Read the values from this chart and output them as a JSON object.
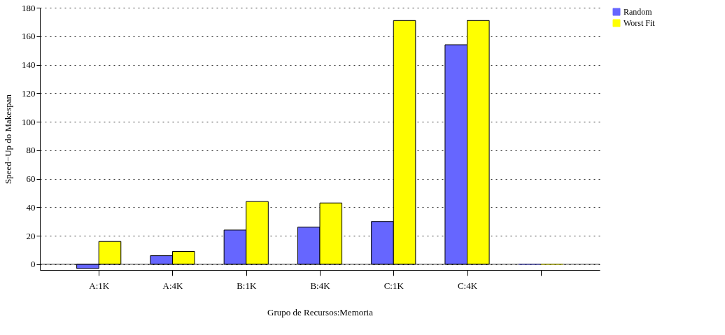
{
  "chart_data": {
    "type": "bar",
    "xlabel": "Grupo de Recursos:Memoria",
    "ylabel": "Speed−Up do Makespan",
    "categories": [
      "A:1K",
      "A:4K",
      "B:1K",
      "B:4K",
      "C:1K",
      "C:4K",
      null
    ],
    "series": [
      {
        "name": "Random",
        "color": "#6666ff",
        "values": [
          -3,
          6,
          24,
          26,
          30,
          154,
          0
        ]
      },
      {
        "name": "Worst Fit",
        "color": "#ffff00",
        "values": [
          16,
          9,
          44,
          43,
          171,
          171,
          0
        ]
      }
    ],
    "ylim": [
      -4,
      180
    ],
    "yticks": [
      0,
      20,
      40,
      60,
      80,
      100,
      120,
      140,
      160,
      180
    ],
    "grid": "y",
    "legend": "top right"
  }
}
